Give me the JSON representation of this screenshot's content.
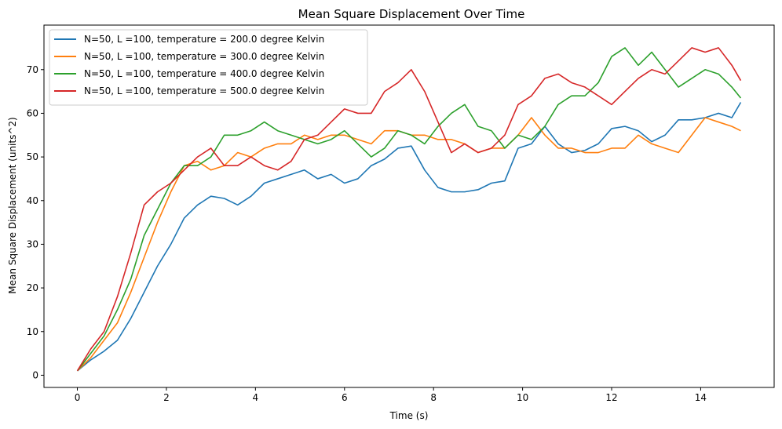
{
  "chart_data": {
    "type": "line",
    "title": "Mean Square Displacement Over Time",
    "xlabel": "Time (s)",
    "ylabel": "Mean Square Displacement (units^2)",
    "xlim": [
      -0.75,
      15.65
    ],
    "ylim": [
      -2.8,
      80.2
    ],
    "xticks": [
      0,
      2,
      4,
      6,
      8,
      10,
      12,
      14
    ],
    "yticks": [
      0,
      10,
      20,
      30,
      40,
      50,
      60,
      70
    ],
    "grid": false,
    "legend_position": "top-left",
    "series": [
      {
        "name": "N=50, L =100, temperature = 200.0 degree Kelvin",
        "color": "#1f77b4",
        "x": [
          0,
          0.3,
          0.6,
          0.9,
          1.2,
          1.5,
          1.8,
          2.1,
          2.4,
          2.7,
          3.0,
          3.3,
          3.6,
          3.9,
          4.2,
          4.5,
          4.8,
          5.1,
          5.4,
          5.7,
          6.0,
          6.3,
          6.6,
          6.9,
          7.2,
          7.5,
          7.8,
          8.1,
          8.4,
          8.7,
          9.0,
          9.3,
          9.6,
          9.9,
          10.2,
          10.5,
          10.8,
          11.1,
          11.4,
          11.7,
          12.0,
          12.3,
          12.6,
          12.9,
          13.2,
          13.5,
          13.8,
          14.1,
          14.4,
          14.7,
          14.9
        ],
        "y": [
          1,
          3.5,
          5.5,
          8,
          13,
          19,
          25,
          30,
          36,
          39,
          41,
          40.5,
          39,
          41,
          44,
          45,
          46,
          47,
          45,
          46,
          44,
          45,
          48,
          49.5,
          52,
          52.5,
          47,
          43,
          42,
          42,
          42.5,
          44,
          44.5,
          52,
          53,
          57,
          53,
          51,
          51.5,
          53,
          56.5,
          57,
          56,
          53.5,
          55,
          58.5,
          58.5,
          59,
          60,
          59,
          62.5
        ]
      },
      {
        "name": "N=50, L =100, temperature = 300.0 degree Kelvin",
        "color": "#ff7f0e",
        "x": [
          0,
          0.3,
          0.6,
          0.9,
          1.2,
          1.5,
          1.8,
          2.1,
          2.4,
          2.7,
          3.0,
          3.3,
          3.6,
          3.9,
          4.2,
          4.5,
          4.8,
          5.1,
          5.4,
          5.7,
          6.0,
          6.3,
          6.6,
          6.9,
          7.2,
          7.5,
          7.8,
          8.1,
          8.4,
          8.7,
          9.0,
          9.3,
          9.6,
          9.9,
          10.2,
          10.5,
          10.8,
          11.1,
          11.4,
          11.7,
          12.0,
          12.3,
          12.6,
          12.9,
          13.2,
          13.5,
          13.8,
          14.1,
          14.4,
          14.7,
          14.9
        ],
        "y": [
          1,
          4,
          8,
          12,
          19,
          27,
          35,
          42,
          48,
          49,
          47,
          48,
          51,
          50,
          52,
          53,
          53,
          55,
          54,
          55,
          55,
          54,
          53,
          56,
          56,
          55,
          55,
          54,
          54,
          53,
          51,
          52,
          52,
          55,
          59,
          55,
          52,
          52,
          51,
          51,
          52,
          52,
          55,
          53,
          52,
          51,
          55,
          59,
          58,
          57,
          56
        ]
      },
      {
        "name": "N=50, L =100, temperature = 400.0 degree Kelvin",
        "color": "#2ca02c",
        "x": [
          0,
          0.3,
          0.6,
          0.9,
          1.2,
          1.5,
          1.8,
          2.1,
          2.4,
          2.7,
          3.0,
          3.3,
          3.6,
          3.9,
          4.2,
          4.5,
          4.8,
          5.1,
          5.4,
          5.7,
          6.0,
          6.3,
          6.6,
          6.9,
          7.2,
          7.5,
          7.8,
          8.1,
          8.4,
          8.7,
          9.0,
          9.3,
          9.6,
          9.9,
          10.2,
          10.5,
          10.8,
          11.1,
          11.4,
          11.7,
          12.0,
          12.3,
          12.6,
          12.9,
          13.2,
          13.5,
          13.8,
          14.1,
          14.4,
          14.7,
          14.9
        ],
        "y": [
          1,
          5,
          9,
          15,
          22,
          32,
          38,
          44,
          48,
          48,
          50,
          55,
          55,
          56,
          58,
          56,
          55,
          54,
          53,
          54,
          56,
          53,
          50,
          52,
          56,
          55,
          53,
          57,
          60,
          62,
          57,
          56,
          52,
          55,
          54,
          57,
          62,
          64,
          64,
          67,
          73,
          75,
          71,
          74,
          70,
          66,
          68,
          70,
          69,
          66,
          63.5
        ]
      },
      {
        "name": "N=50, L =100, temperature = 500.0 degree Kelvin",
        "color": "#d62728",
        "x": [
          0,
          0.3,
          0.6,
          0.9,
          1.2,
          1.5,
          1.8,
          2.1,
          2.4,
          2.7,
          3.0,
          3.3,
          3.6,
          3.9,
          4.2,
          4.5,
          4.8,
          5.1,
          5.4,
          5.7,
          6.0,
          6.3,
          6.6,
          6.9,
          7.2,
          7.5,
          7.8,
          8.1,
          8.4,
          8.7,
          9.0,
          9.3,
          9.6,
          9.9,
          10.2,
          10.5,
          10.8,
          11.1,
          11.4,
          11.7,
          12.0,
          12.3,
          12.6,
          12.9,
          13.2,
          13.5,
          13.8,
          14.1,
          14.4,
          14.7,
          14.9
        ],
        "y": [
          1,
          6,
          10,
          18,
          28,
          39,
          42,
          44,
          47,
          50,
          52,
          48,
          48,
          50,
          48,
          47,
          49,
          54,
          55,
          58,
          61,
          60,
          60,
          65,
          67,
          70,
          65,
          58,
          51,
          53,
          51,
          52,
          55,
          62,
          64,
          68,
          69,
          67,
          66,
          64,
          62,
          65,
          68,
          70,
          69,
          72,
          75,
          74,
          75,
          71,
          67.5
        ]
      }
    ]
  }
}
